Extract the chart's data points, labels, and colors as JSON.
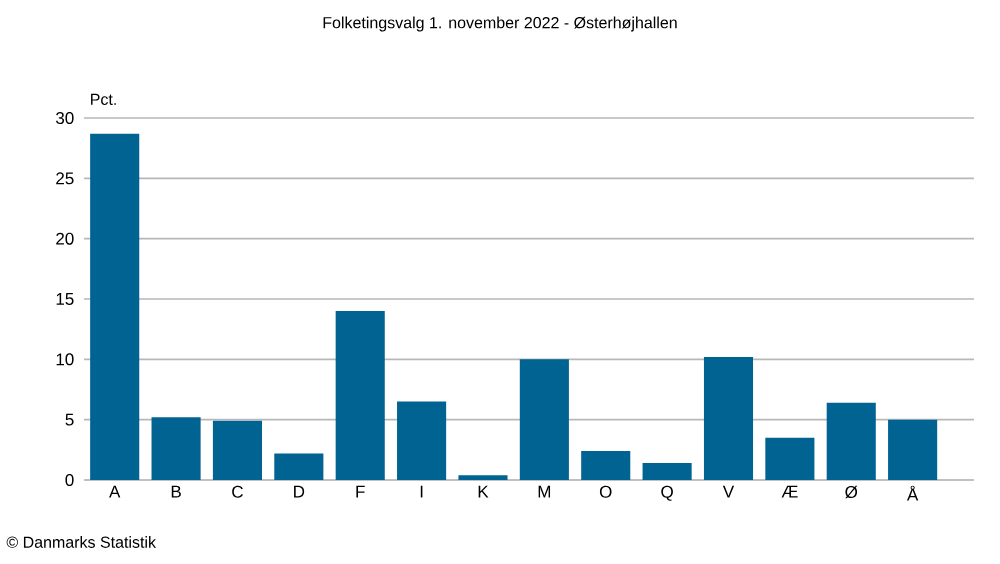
{
  "chart_data": {
    "type": "bar",
    "title": "Folketingsvalg 1. november 2022 - Østerhøjhallen",
    "ylabel": "Pct.",
    "categories": [
      "A",
      "B",
      "C",
      "D",
      "F",
      "I",
      "K",
      "M",
      "O",
      "Q",
      "V",
      "Æ",
      "Ø",
      "Å"
    ],
    "values": [
      28.7,
      5.2,
      4.9,
      2.2,
      14.0,
      6.5,
      0.4,
      10.0,
      2.4,
      1.4,
      10.2,
      3.5,
      6.4,
      5.0
    ],
    "color": "#006391",
    "ylim": [
      0,
      30
    ],
    "yticks": [
      0,
      5,
      10,
      15,
      20,
      25,
      30
    ],
    "grid": "y",
    "annotations": [
      "© Danmarks Statistik"
    ]
  }
}
